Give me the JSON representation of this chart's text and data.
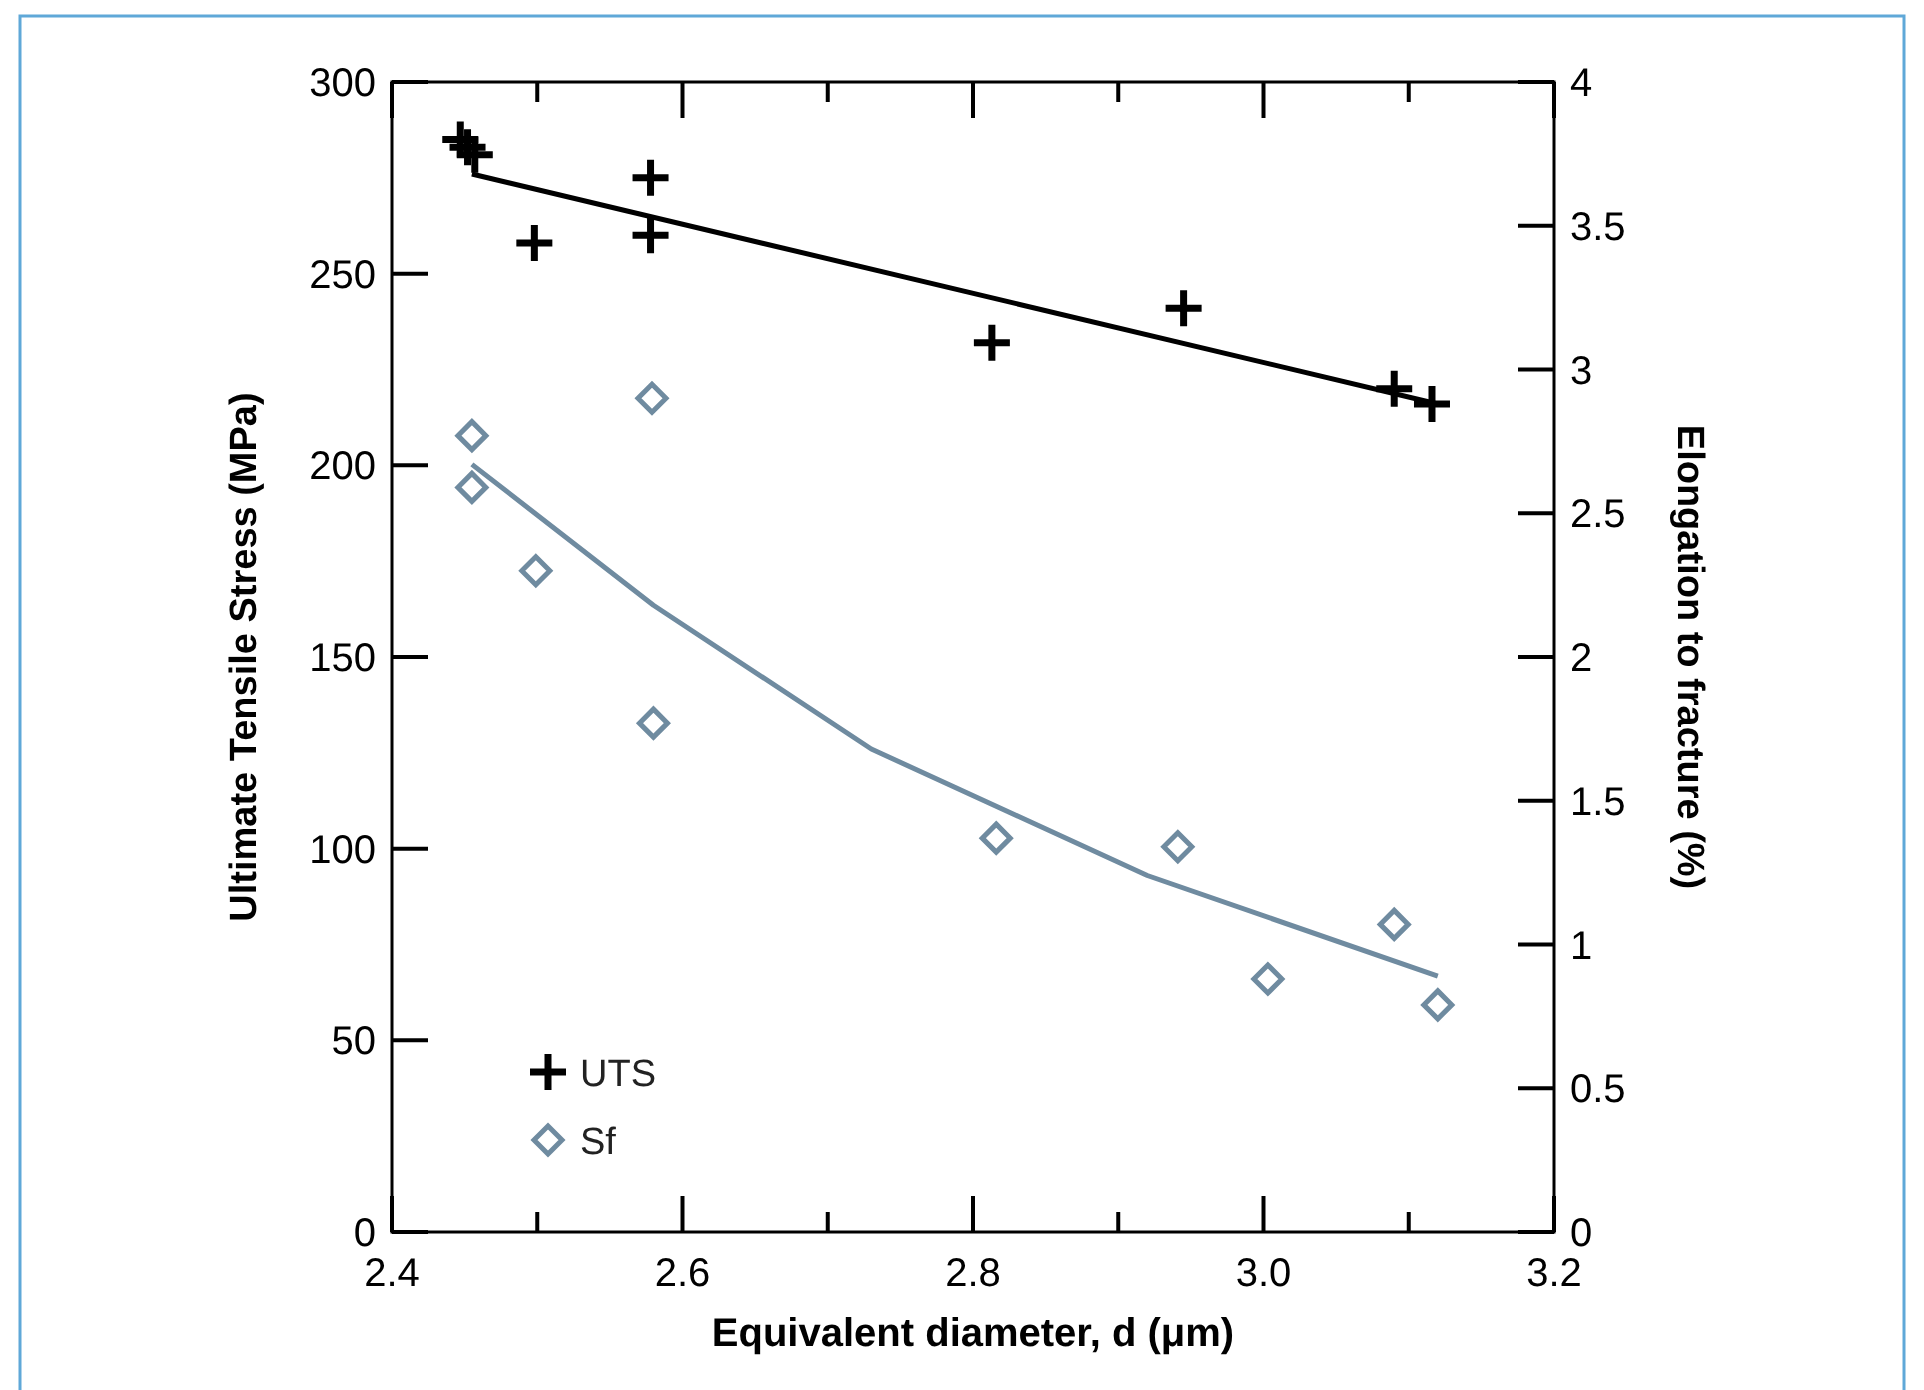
{
  "chart_data": {
    "type": "scatter",
    "xlabel": "Equivalent diameter, d (μm)",
    "ylabel": "Ultimate Tensile Stress (MPa)",
    "y2label": "Elongation to fracture (%)",
    "xlim": [
      2.4,
      3.2
    ],
    "xticks": [
      2.4,
      {
        "value": 2.5,
        "label": null
      },
      2.6,
      {
        "value": 2.7,
        "label": null
      },
      2.8,
      {
        "value": 2.9,
        "label": null
      },
      "3.0",
      {
        "value": 3.1,
        "label": null
      },
      3.2
    ],
    "ylim": [
      0,
      300
    ],
    "yticks": [
      0,
      50,
      100,
      150,
      200,
      250,
      300
    ],
    "y2lim": [
      0,
      4
    ],
    "y2ticks": [
      0,
      0.5,
      1,
      1.5,
      2,
      2.5,
      3,
      3.5,
      4
    ],
    "legend": "bottom left",
    "grid": false,
    "series": [
      {
        "name": "UTS",
        "marker": "cross",
        "color": "#000000",
        "axis": "y",
        "x": [
          2.447,
          2.452,
          2.457,
          2.498,
          2.578,
          2.578,
          2.813,
          2.945,
          3.09,
          3.116
        ],
        "values": [
          285,
          283,
          281,
          258,
          275,
          260,
          232,
          241,
          220,
          216
        ]
      },
      {
        "type": "line",
        "color": "#000000",
        "axis": "y",
        "x": [
          2.455,
          3.12
        ],
        "values": [
          276,
          216
        ]
      },
      {
        "name": "Sf",
        "marker": "diamond",
        "color": "#6f8ba0",
        "axis": "y2",
        "x": [
          2.455,
          2.455,
          2.499,
          2.579,
          2.58,
          2.816,
          2.941,
          3.003,
          3.09,
          3.12
        ],
        "values": [
          2.77,
          2.59,
          2.3,
          2.9,
          1.77,
          1.37,
          1.34,
          0.88,
          1.07,
          0.79
        ]
      },
      {
        "type": "line",
        "color": "#6f8ba0",
        "axis": "y2",
        "x": [
          2.455,
          2.58,
          2.73,
          2.92,
          3.12
        ],
        "values": [
          2.67,
          2.18,
          1.68,
          1.24,
          0.89
        ]
      }
    ]
  }
}
